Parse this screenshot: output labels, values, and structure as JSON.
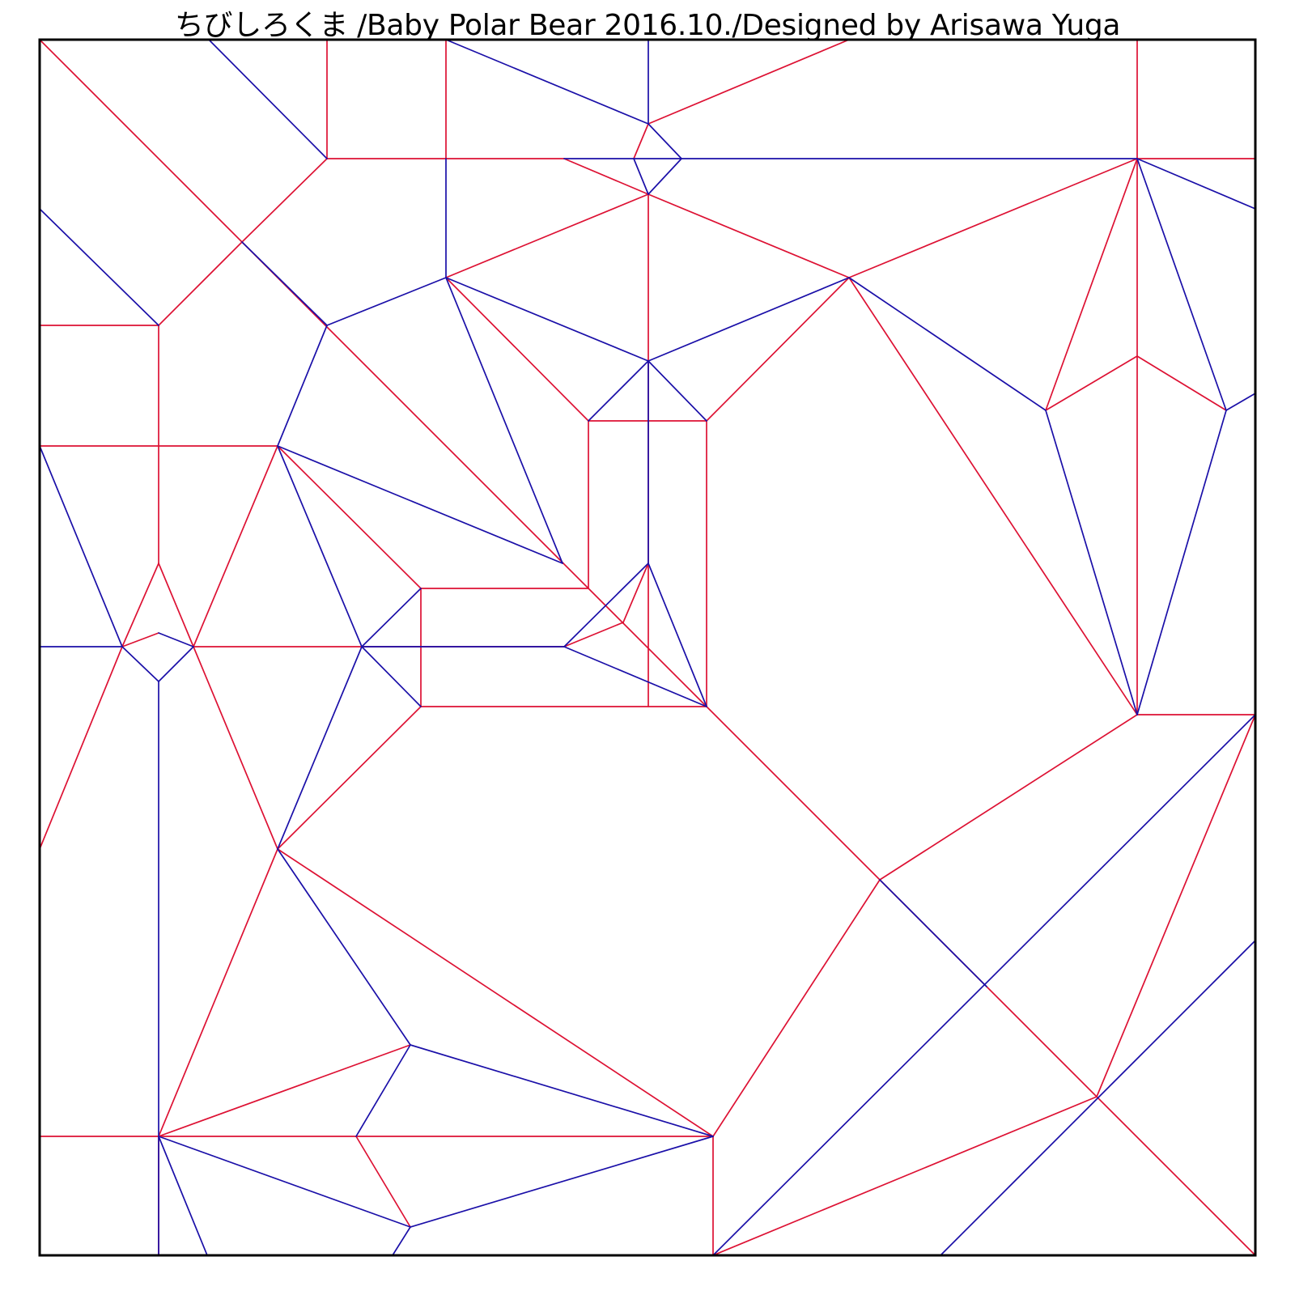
{
  "title": "ちびしろくま /Baby Polar Bear  2016.10./Designed by Arisawa Yuga",
  "colors": {
    "mountain": "#dd1133",
    "valley": "#1a0fa8",
    "border": "#000000",
    "background": "#ffffff"
  }
}
